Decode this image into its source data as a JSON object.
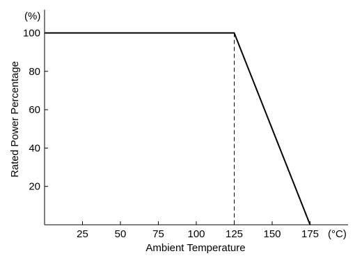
{
  "chart_data": {
    "type": "line",
    "xlabel": "Ambient Temperature",
    "ylabel": "Rated Power Percentage",
    "x_unit": "(°C)",
    "y_unit": "(%)",
    "xlim": [
      0,
      200
    ],
    "ylim": [
      0,
      100
    ],
    "x_ticks": [
      25,
      50,
      75,
      100,
      125,
      150,
      175
    ],
    "y_ticks": [
      20,
      40,
      60,
      80,
      100
    ],
    "series": [
      {
        "x": [
          0,
          125,
          175
        ],
        "y": [
          100,
          100,
          0
        ]
      }
    ],
    "reference_line": {
      "x": 125,
      "style": "dashed"
    },
    "grid": false
  }
}
